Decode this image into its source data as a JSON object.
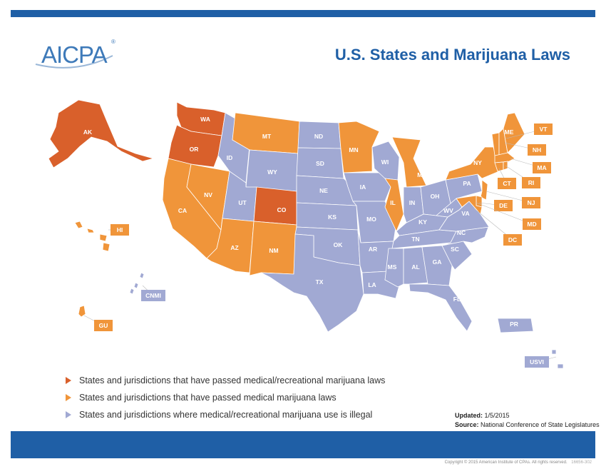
{
  "header": {
    "logo_text": "AICPA",
    "logo_mark": "®",
    "title": "U.S. States and Marijuana Laws"
  },
  "colors": {
    "recreational": "#d9602b",
    "medical": "#f0953a",
    "illegal": "#a1a9d3",
    "brand_blue": "#1f5fa6"
  },
  "states": {
    "recreational": [
      "AK",
      "WA",
      "OR",
      "CO"
    ],
    "medical": [
      "CA",
      "NV",
      "AZ",
      "NM",
      "MT",
      "MN",
      "IL",
      "MI",
      "ME",
      "VT",
      "NH",
      "MA",
      "RI",
      "CT",
      "NY",
      "NJ",
      "DE",
      "MD",
      "DC",
      "HI",
      "GU"
    ],
    "illegal": [
      "ID",
      "UT",
      "WY",
      "ND",
      "SD",
      "NE",
      "KS",
      "OK",
      "TX",
      "IA",
      "MO",
      "AR",
      "LA",
      "WI",
      "IN",
      "OH",
      "KY",
      "TN",
      "MS",
      "AL",
      "GA",
      "FL",
      "SC",
      "NC",
      "VA",
      "WV",
      "PA",
      "CNMI",
      "PR",
      "USVI"
    ]
  },
  "legend": [
    {
      "label": "States and jurisdictions that have passed medical/recreational marijuana laws",
      "color": "#d9602b"
    },
    {
      "label": "States and jurisdictions that have passed medical marijuana laws",
      "color": "#f0953a"
    },
    {
      "label": "States and jurisdictions where medical/recreational marijuana use is illegal",
      "color": "#a1a9d3"
    }
  ],
  "meta": {
    "updated_label": "Updated:",
    "updated_value": "1/5/2015",
    "source_label": "Source:",
    "source_value": "National Conference of State Legislatures"
  },
  "footer": {
    "copyright": "Copyright © 2015 American Institute of CPAs. All rights reserved.",
    "code": "16656-302"
  }
}
